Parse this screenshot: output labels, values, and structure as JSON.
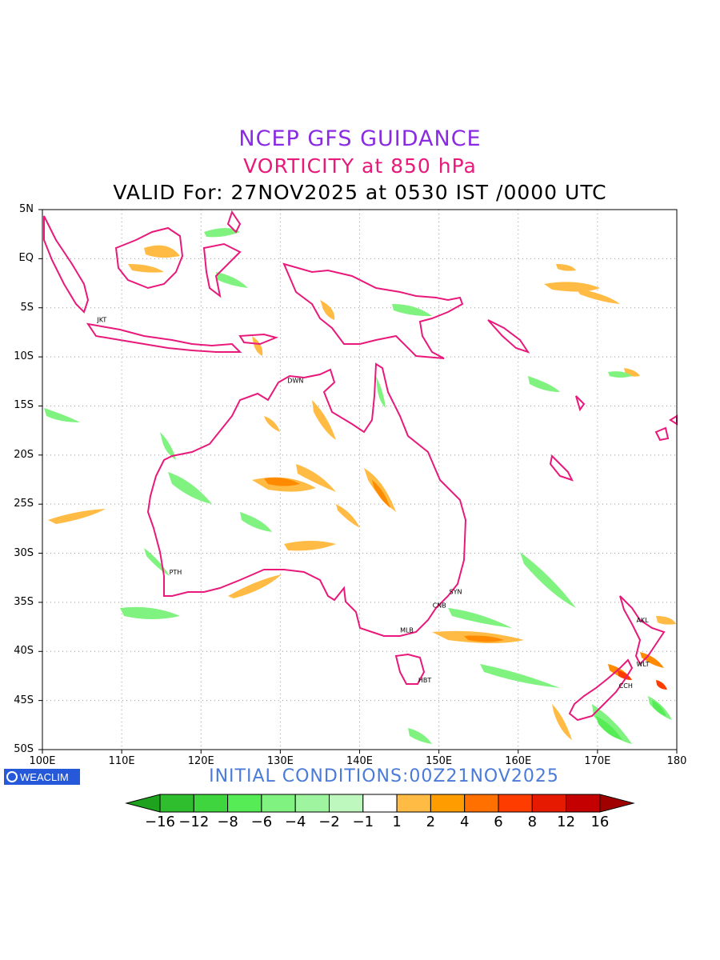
{
  "titles": {
    "line1": "NCEP GFS GUIDANCE",
    "line2": "VORTICITY at 850 hPa",
    "line3": "VALID For: 27NOV2025 at 0530 IST /0000 UTC"
  },
  "colors": {
    "title1": "#8a2be2",
    "title2": "#e8197a",
    "coastline": "#e8197a",
    "initial_conditions": "#4a7bd9",
    "brand_bg": "#2659d9"
  },
  "map": {
    "lat_labels": [
      "5N",
      "EQ",
      "5S",
      "10S",
      "15S",
      "20S",
      "25S",
      "30S",
      "35S",
      "40S",
      "45S",
      "50S"
    ],
    "lon_labels": [
      "100E",
      "110E",
      "120E",
      "130E",
      "140E",
      "150E",
      "160E",
      "170E",
      "180"
    ],
    "cities": [
      {
        "code": "JKT",
        "lon": 106.8,
        "lat": -6.2
      },
      {
        "code": "DWN",
        "lon": 130.8,
        "lat": -12.4
      },
      {
        "code": "PTH",
        "lon": 115.9,
        "lat": -31.9
      },
      {
        "code": "SYN",
        "lon": 151.2,
        "lat": -33.9
      },
      {
        "code": "CNB",
        "lon": 149.1,
        "lat": -35.3
      },
      {
        "code": "MLB",
        "lon": 145.0,
        "lat": -37.8
      },
      {
        "code": "HBT",
        "lon": 147.3,
        "lat": -42.9
      },
      {
        "code": "AKL",
        "lon": 174.8,
        "lat": -36.8
      },
      {
        "code": "WLT",
        "lon": 174.8,
        "lat": -41.3
      },
      {
        "code": "CCH",
        "lon": 172.6,
        "lat": -43.5
      }
    ]
  },
  "footer": {
    "brand": "WEACLIM",
    "initial_conditions": "INITIAL CONDITIONS:00Z21NOV2025"
  },
  "colorbar": {
    "labels": [
      "-16",
      "-12",
      "-8",
      "-6",
      "-4",
      "-2",
      "-1",
      "1",
      "2",
      "4",
      "6",
      "8",
      "12",
      "16"
    ],
    "colors": [
      "#1fa31f",
      "#2ebe2e",
      "#3ed53e",
      "#55ec55",
      "#7ff27f",
      "#9ff59f",
      "#bff8bf",
      "#ffffff",
      "#ffbb44",
      "#ff9d00",
      "#ff7000",
      "#ff3c00",
      "#e61a00",
      "#c40000",
      "#a10000"
    ]
  }
}
